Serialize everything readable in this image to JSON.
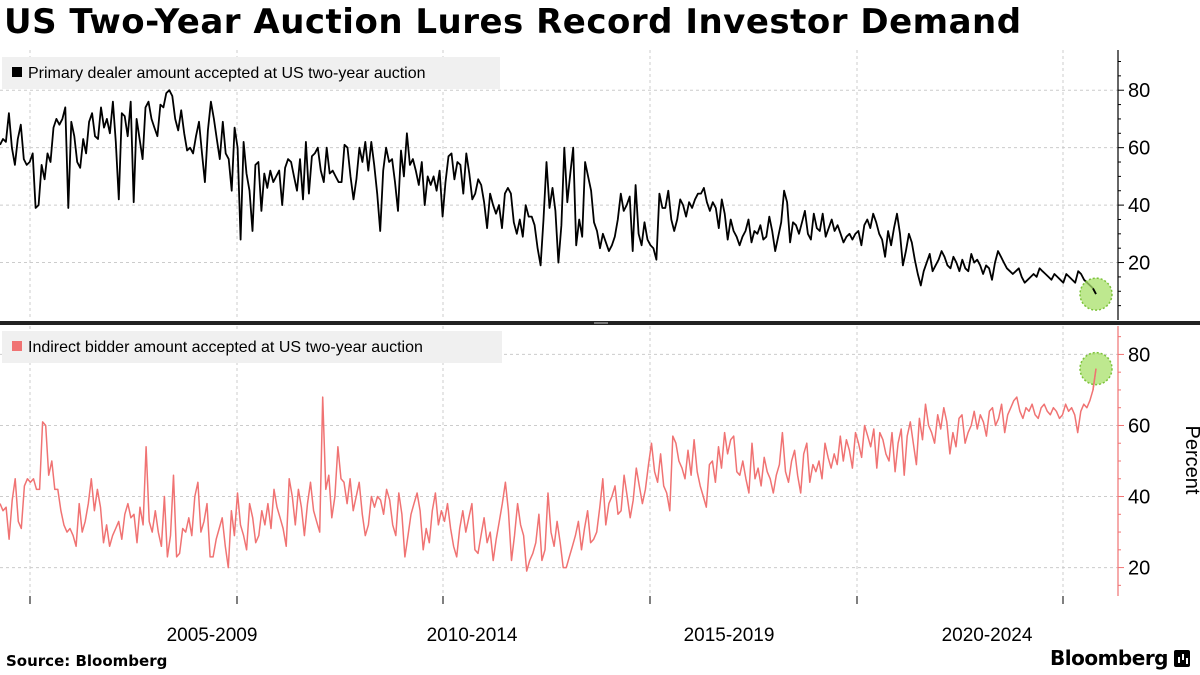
{
  "title": "US Two-Year Auction Lures Record Investor Demand",
  "footer": {
    "source": "Source: Bloomberg",
    "brand": "Bloomberg"
  },
  "colors": {
    "primary_series": "#000000",
    "indirect_series": "#f07373",
    "highlight": "#a8e06a",
    "grid": "#cccccc",
    "legend_bg": "#f0f0f0"
  },
  "chart_data": [
    {
      "type": "line",
      "title": "US Two-Year Auction Lures Record Investor Demand",
      "legend": "Primary dealer amount accepted at US two-year auction",
      "legend_position": "top-left",
      "series_name": "Primary dealer amount accepted at US two-year auction",
      "x_start": 2003.0,
      "x_step": 0.0833,
      "xlim": [
        2003.0,
        2024.6
      ],
      "ylim": [
        0,
        94
      ],
      "yticks": [
        20,
        40,
        60,
        80
      ],
      "ylabel": "",
      "grid": true,
      "highlight_last_point": true,
      "values": [
        61,
        63,
        62,
        72,
        60,
        54,
        63,
        68,
        56,
        54,
        55,
        58,
        39,
        40,
        54,
        49,
        58,
        55,
        67,
        70,
        68,
        70,
        74,
        39,
        69,
        64,
        55,
        53,
        63,
        58,
        69,
        72,
        64,
        63,
        74,
        67,
        70,
        65,
        76,
        62,
        42,
        72,
        71,
        64,
        76,
        41,
        70,
        63,
        56,
        74,
        76,
        70,
        67,
        64,
        75,
        74,
        79,
        80,
        78,
        70,
        66,
        73,
        65,
        59,
        60,
        58,
        64,
        69,
        58,
        48,
        66,
        76,
        70,
        63,
        56,
        69,
        58,
        56,
        45,
        67,
        60,
        28,
        62,
        51,
        45,
        31,
        54,
        55,
        38,
        51,
        46,
        52,
        48,
        50,
        52,
        40,
        53,
        56,
        55,
        50,
        45,
        56,
        42,
        62,
        44,
        57,
        58,
        60,
        52,
        48,
        60,
        51,
        52,
        50,
        48,
        48,
        61,
        60,
        50,
        42,
        49,
        60,
        55,
        62,
        52,
        62,
        54,
        44,
        31,
        52,
        60,
        55,
        56,
        48,
        38,
        59,
        50,
        65,
        54,
        56,
        52,
        47,
        55,
        40,
        50,
        47,
        50,
        45,
        52,
        36,
        48,
        57,
        58,
        49,
        55,
        54,
        44,
        58,
        51,
        42,
        44,
        49,
        47,
        41,
        32,
        44,
        40,
        37,
        40,
        32,
        44,
        46,
        44,
        34,
        30,
        35,
        29,
        40,
        36,
        36,
        33,
        25,
        19,
        35,
        55,
        39,
        46,
        38,
        20,
        33,
        60,
        41,
        51,
        60,
        26,
        35,
        29,
        55,
        50,
        45,
        34,
        31,
        25,
        30,
        27,
        24,
        26,
        29,
        35,
        44,
        38,
        40,
        43,
        24,
        47,
        30,
        26,
        34,
        28,
        26,
        25,
        21,
        44,
        39,
        39,
        45,
        35,
        31,
        35,
        42,
        40,
        36,
        41,
        39,
        42,
        44,
        44,
        46,
        41,
        38,
        41,
        39,
        32,
        42,
        37,
        28,
        35,
        31,
        29,
        26,
        29,
        31,
        35,
        27,
        31,
        30,
        33,
        28,
        29,
        36,
        31,
        24,
        29,
        34,
        45,
        41,
        27,
        34,
        33,
        30,
        34,
        38,
        30,
        28,
        37,
        32,
        31,
        37,
        29,
        32,
        35,
        31,
        33,
        30,
        27,
        29,
        30,
        28,
        30,
        31,
        26,
        33,
        35,
        32,
        37,
        34,
        30,
        28,
        22,
        31,
        26,
        32,
        37,
        30,
        19,
        24,
        30,
        27,
        21,
        16,
        12,
        17,
        20,
        23,
        17,
        19,
        21,
        24,
        22,
        19,
        18,
        22,
        20,
        17,
        21,
        18,
        17,
        23,
        20,
        21,
        19,
        16,
        19,
        18,
        14,
        20,
        24,
        22,
        20,
        18,
        17,
        16,
        17,
        18,
        15,
        13,
        14,
        15,
        16,
        15,
        18,
        17,
        16,
        15,
        14,
        16,
        15,
        14,
        13,
        16,
        15,
        14,
        13,
        17,
        16,
        14,
        13,
        12,
        11,
        9
      ]
    },
    {
      "type": "line",
      "legend": "Indirect bidder amount accepted at US two-year auction",
      "legend_position": "top-left",
      "series_name": "Indirect bidder amount accepted at US two-year auction",
      "x_start": 2003.0,
      "x_step": 0.0833,
      "xlim": [
        2003.0,
        2024.6
      ],
      "ylim": [
        12,
        88
      ],
      "yticks": [
        20,
        40,
        60,
        80
      ],
      "ylabel": "Percent",
      "xtick_labels": [
        "2005-2009",
        "2010-2014",
        "2015-2019",
        "2020-2024"
      ],
      "grid": true,
      "highlight_last_point": true,
      "values": [
        38,
        36,
        37,
        28,
        39,
        45,
        33,
        31,
        43,
        45,
        44,
        45,
        42,
        42,
        61,
        60,
        46,
        50,
        42,
        42,
        36,
        32,
        30,
        31,
        29,
        26,
        38,
        30,
        33,
        38,
        45,
        36,
        42,
        37,
        27,
        32,
        26,
        29,
        31,
        33,
        28,
        35,
        38,
        34,
        35,
        27,
        37,
        32,
        54,
        33,
        30,
        36,
        30,
        26,
        40,
        23,
        29,
        46,
        23,
        24,
        31,
        30,
        34,
        29,
        40,
        44,
        30,
        33,
        38,
        23,
        23,
        28,
        31,
        34,
        26,
        20,
        36,
        29,
        41,
        32,
        29,
        25,
        38,
        34,
        27,
        29,
        36,
        32,
        38,
        31,
        42,
        37,
        34,
        31,
        26,
        45,
        40,
        32,
        42,
        37,
        29,
        38,
        44,
        36,
        33,
        30,
        68,
        42,
        46,
        34,
        40,
        54,
        45,
        44,
        38,
        45,
        36,
        40,
        44,
        35,
        29,
        32,
        40,
        37,
        40,
        39,
        35,
        42,
        39,
        32,
        29,
        41,
        35,
        23,
        29,
        35,
        38,
        41,
        36,
        25,
        31,
        27,
        36,
        41,
        32,
        36,
        33,
        38,
        31,
        26,
        23,
        31,
        36,
        30,
        34,
        38,
        25,
        24,
        29,
        34,
        27,
        30,
        22,
        28,
        33,
        38,
        44,
        36,
        22,
        29,
        38,
        32,
        29,
        19,
        22,
        24,
        27,
        35,
        22,
        25,
        41,
        30,
        26,
        33,
        27,
        20,
        20,
        23,
        26,
        29,
        33,
        25,
        31,
        36,
        27,
        28,
        30,
        37,
        45,
        32,
        38,
        40,
        43,
        35,
        36,
        46,
        40,
        34,
        39,
        48,
        43,
        38,
        42,
        49,
        55,
        47,
        44,
        52,
        43,
        41,
        36,
        57,
        55,
        50,
        48,
        45,
        53,
        46,
        56,
        47,
        43,
        40,
        37,
        49,
        50,
        44,
        54,
        48,
        58,
        52,
        56,
        57,
        47,
        46,
        50,
        45,
        41,
        55,
        45,
        48,
        43,
        51,
        47,
        45,
        41,
        46,
        49,
        58,
        47,
        44,
        50,
        53,
        46,
        41,
        52,
        55,
        44,
        49,
        47,
        50,
        45,
        55,
        51,
        48,
        52,
        49,
        57,
        50,
        56,
        53,
        48,
        58,
        55,
        51,
        60,
        57,
        54,
        59,
        48,
        58,
        56,
        52,
        50,
        58,
        47,
        55,
        59,
        46,
        57,
        61,
        55,
        49,
        62,
        56,
        66,
        60,
        58,
        55,
        63,
        59,
        65,
        61,
        52,
        58,
        54,
        62,
        63,
        55,
        58,
        60,
        64,
        59,
        63,
        61,
        57,
        64,
        65,
        60,
        62,
        66,
        58,
        63,
        65,
        67,
        68,
        64,
        62,
        65,
        64,
        66,
        63,
        62,
        65,
        66,
        64,
        63,
        65,
        64,
        62,
        63,
        66,
        64,
        65,
        63,
        58,
        64,
        66,
        65,
        67,
        70,
        76
      ]
    }
  ]
}
